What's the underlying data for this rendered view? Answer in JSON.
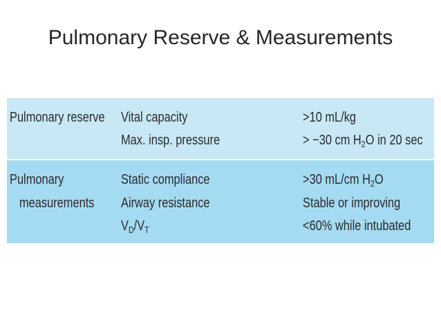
{
  "title": "Pulmonary Reserve & Measurements",
  "table": {
    "groups": [
      {
        "label": [
          "Pulmonary reserve"
        ],
        "rows": [
          {
            "measure": [
              "Vital capacity"
            ],
            "criterion": [
              ">10 mL/kg"
            ]
          },
          {
            "measure": [
              "Max. insp. pressure"
            ],
            "criterion": [
              "> −30 cm H",
              "2",
              "O in 20 sec"
            ]
          }
        ]
      },
      {
        "label": [
          "Pulmonary",
          "measurements"
        ],
        "rows": [
          {
            "measure": [
              "Static compliance"
            ],
            "criterion": [
              ">30 mL/cm H",
              "2",
              "O"
            ]
          },
          {
            "measure": [
              "Airway resistance"
            ],
            "criterion": [
              "Stable or improving"
            ]
          },
          {
            "measure": [
              "V",
              "D",
              "/V",
              "T"
            ],
            "criterion": [
              "<60% while intubated"
            ]
          }
        ]
      }
    ]
  }
}
